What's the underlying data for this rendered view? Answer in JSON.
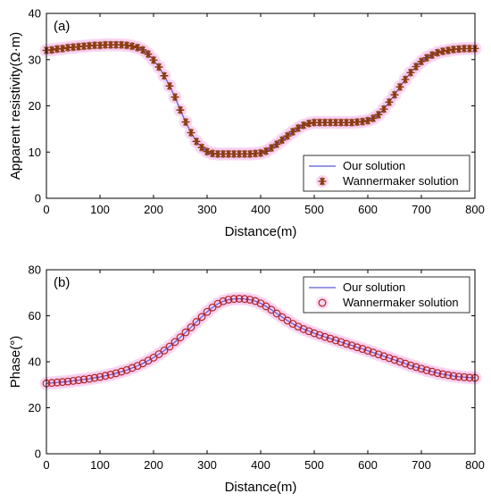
{
  "chart_data": [
    {
      "type": "line",
      "panel_label": "(a)",
      "xlabel": "Distance(m)",
      "ylabel": "Apparent resistivity(Ω·m)",
      "xlim": [
        0,
        800
      ],
      "ylim": [
        0,
        40
      ],
      "xticks": [
        0,
        100,
        200,
        300,
        400,
        500,
        600,
        700,
        800
      ],
      "yticks": [
        0,
        10,
        20,
        30,
        40
      ],
      "legend_position": "bottom-right",
      "colors": {
        "line": "#5b5bd6",
        "marker": "#8b3a0f",
        "halo": "#f7c8f0"
      },
      "marker": "asterisk",
      "series": [
        {
          "name": "Our solution",
          "style": "line",
          "x": [
            0,
            10,
            20,
            30,
            40,
            50,
            60,
            70,
            80,
            90,
            100,
            110,
            120,
            130,
            140,
            150,
            160,
            170,
            180,
            190,
            200,
            210,
            220,
            230,
            240,
            250,
            260,
            270,
            280,
            290,
            300,
            310,
            320,
            330,
            340,
            350,
            360,
            370,
            380,
            390,
            400,
            410,
            420,
            430,
            440,
            450,
            460,
            470,
            480,
            490,
            500,
            510,
            520,
            530,
            540,
            550,
            560,
            570,
            580,
            590,
            600,
            610,
            620,
            630,
            640,
            650,
            660,
            670,
            680,
            690,
            700,
            710,
            720,
            730,
            740,
            750,
            760,
            770,
            780,
            790,
            800
          ],
          "y": [
            32.0,
            32.1,
            32.3,
            32.4,
            32.6,
            32.7,
            32.8,
            32.9,
            33.0,
            33.1,
            33.1,
            33.2,
            33.2,
            33.2,
            33.2,
            33.1,
            32.9,
            32.6,
            32.1,
            31.2,
            29.9,
            28.4,
            26.5,
            24.3,
            21.9,
            19.1,
            16.5,
            14.2,
            12.3,
            11.0,
            10.1,
            9.7,
            9.6,
            9.6,
            9.6,
            9.6,
            9.6,
            9.6,
            9.6,
            9.7,
            9.8,
            10.2,
            10.9,
            11.7,
            12.6,
            13.5,
            14.4,
            15.2,
            15.8,
            16.2,
            16.4,
            16.4,
            16.4,
            16.4,
            16.4,
            16.4,
            16.4,
            16.4,
            16.5,
            16.6,
            16.8,
            17.3,
            18.1,
            19.3,
            20.8,
            22.4,
            24.1,
            25.7,
            27.2,
            28.5,
            29.6,
            30.4,
            31.0,
            31.5,
            31.8,
            32.0,
            32.2,
            32.3,
            32.4,
            32.4,
            32.4
          ]
        },
        {
          "name": "Wannermaker solution",
          "style": "marker",
          "x": [
            0,
            10,
            20,
            30,
            40,
            50,
            60,
            70,
            80,
            90,
            100,
            110,
            120,
            130,
            140,
            150,
            160,
            170,
            180,
            190,
            200,
            210,
            220,
            230,
            240,
            250,
            260,
            270,
            280,
            290,
            300,
            310,
            320,
            330,
            340,
            350,
            360,
            370,
            380,
            390,
            400,
            410,
            420,
            430,
            440,
            450,
            460,
            470,
            480,
            490,
            500,
            510,
            520,
            530,
            540,
            550,
            560,
            570,
            580,
            590,
            600,
            610,
            620,
            630,
            640,
            650,
            660,
            670,
            680,
            690,
            700,
            710,
            720,
            730,
            740,
            750,
            760,
            770,
            780,
            790,
            800
          ],
          "y": [
            32.0,
            32.1,
            32.3,
            32.4,
            32.6,
            32.7,
            32.8,
            32.9,
            33.0,
            33.1,
            33.1,
            33.2,
            33.2,
            33.2,
            33.2,
            33.1,
            32.9,
            32.6,
            32.1,
            31.2,
            29.9,
            28.4,
            26.5,
            24.3,
            21.9,
            19.1,
            16.5,
            14.2,
            12.3,
            11.0,
            10.1,
            9.7,
            9.6,
            9.6,
            9.6,
            9.6,
            9.6,
            9.6,
            9.6,
            9.7,
            9.8,
            10.2,
            10.9,
            11.7,
            12.6,
            13.5,
            14.4,
            15.2,
            15.8,
            16.2,
            16.4,
            16.4,
            16.4,
            16.4,
            16.4,
            16.4,
            16.4,
            16.4,
            16.5,
            16.6,
            16.8,
            17.3,
            18.1,
            19.3,
            20.8,
            22.4,
            24.1,
            25.7,
            27.2,
            28.5,
            29.6,
            30.4,
            31.0,
            31.5,
            31.8,
            32.0,
            32.2,
            32.3,
            32.4,
            32.4,
            32.4
          ]
        }
      ]
    },
    {
      "type": "line",
      "panel_label": "(b)",
      "xlabel": "Distance(m)",
      "ylabel": "Phase(°)",
      "xlim": [
        0,
        800
      ],
      "ylim": [
        0,
        80
      ],
      "xticks": [
        0,
        100,
        200,
        300,
        400,
        500,
        600,
        700,
        800
      ],
      "yticks": [
        0,
        20,
        40,
        60,
        80
      ],
      "legend_position": "top-right",
      "colors": {
        "line": "#5b5bd6",
        "marker": "#b22222",
        "halo": "#f7c8f0"
      },
      "marker": "circle",
      "series": [
        {
          "name": "Our solution",
          "style": "line",
          "x": [
            0,
            10,
            20,
            30,
            40,
            50,
            60,
            70,
            80,
            90,
            100,
            110,
            120,
            130,
            140,
            150,
            160,
            170,
            180,
            190,
            200,
            210,
            220,
            230,
            240,
            250,
            260,
            270,
            280,
            290,
            300,
            310,
            320,
            330,
            340,
            350,
            360,
            370,
            380,
            390,
            400,
            410,
            420,
            430,
            440,
            450,
            460,
            470,
            480,
            490,
            500,
            510,
            520,
            530,
            540,
            550,
            560,
            570,
            580,
            590,
            600,
            610,
            620,
            630,
            640,
            650,
            660,
            670,
            680,
            690,
            700,
            710,
            720,
            730,
            740,
            750,
            760,
            770,
            780,
            790,
            800
          ],
          "y": [
            30.6,
            30.8,
            31.0,
            31.2,
            31.4,
            31.7,
            32.0,
            32.3,
            32.6,
            33.0,
            33.4,
            33.9,
            34.4,
            35.0,
            35.7,
            36.4,
            37.3,
            38.2,
            39.3,
            40.5,
            41.8,
            43.3,
            44.9,
            46.6,
            48.6,
            50.6,
            52.8,
            55.0,
            57.3,
            59.5,
            61.7,
            63.6,
            65.2,
            66.3,
            67.0,
            67.3,
            67.4,
            67.3,
            67.0,
            66.4,
            65.4,
            64.1,
            62.6,
            61.0,
            59.4,
            57.9,
            56.5,
            55.3,
            54.2,
            53.3,
            52.4,
            51.6,
            50.8,
            50.1,
            49.3,
            48.6,
            47.8,
            47.1,
            46.3,
            45.6,
            44.8,
            44.0,
            43.2,
            42.4,
            41.6,
            40.8,
            40.0,
            39.2,
            38.4,
            37.7,
            37.0,
            36.3,
            35.7,
            35.1,
            34.6,
            34.2,
            33.8,
            33.5,
            33.3,
            33.1,
            33.0
          ]
        },
        {
          "name": "Wannermaker solution",
          "style": "marker",
          "x": [
            0,
            10,
            20,
            30,
            40,
            50,
            60,
            70,
            80,
            90,
            100,
            110,
            120,
            130,
            140,
            150,
            160,
            170,
            180,
            190,
            200,
            210,
            220,
            230,
            240,
            250,
            260,
            270,
            280,
            290,
            300,
            310,
            320,
            330,
            340,
            350,
            360,
            370,
            380,
            390,
            400,
            410,
            420,
            430,
            440,
            450,
            460,
            470,
            480,
            490,
            500,
            510,
            520,
            530,
            540,
            550,
            560,
            570,
            580,
            590,
            600,
            610,
            620,
            630,
            640,
            650,
            660,
            670,
            680,
            690,
            700,
            710,
            720,
            730,
            740,
            750,
            760,
            770,
            780,
            790,
            800
          ],
          "y": [
            30.6,
            30.8,
            31.0,
            31.2,
            31.4,
            31.7,
            32.0,
            32.3,
            32.6,
            33.0,
            33.4,
            33.9,
            34.4,
            35.0,
            35.7,
            36.4,
            37.3,
            38.2,
            39.3,
            40.5,
            41.8,
            43.3,
            44.9,
            46.6,
            48.6,
            50.6,
            52.8,
            55.0,
            57.3,
            59.5,
            61.7,
            63.6,
            65.2,
            66.3,
            67.0,
            67.3,
            67.4,
            67.3,
            67.0,
            66.4,
            65.4,
            64.1,
            62.6,
            61.0,
            59.4,
            57.9,
            56.5,
            55.3,
            54.2,
            53.3,
            52.4,
            51.6,
            50.8,
            50.1,
            49.3,
            48.6,
            47.8,
            47.1,
            46.3,
            45.6,
            44.8,
            44.0,
            43.2,
            42.4,
            41.6,
            40.8,
            40.0,
            39.2,
            38.4,
            37.7,
            37.0,
            36.3,
            35.7,
            35.1,
            34.6,
            34.2,
            33.8,
            33.5,
            33.3,
            33.1,
            33.0
          ]
        }
      ]
    }
  ]
}
